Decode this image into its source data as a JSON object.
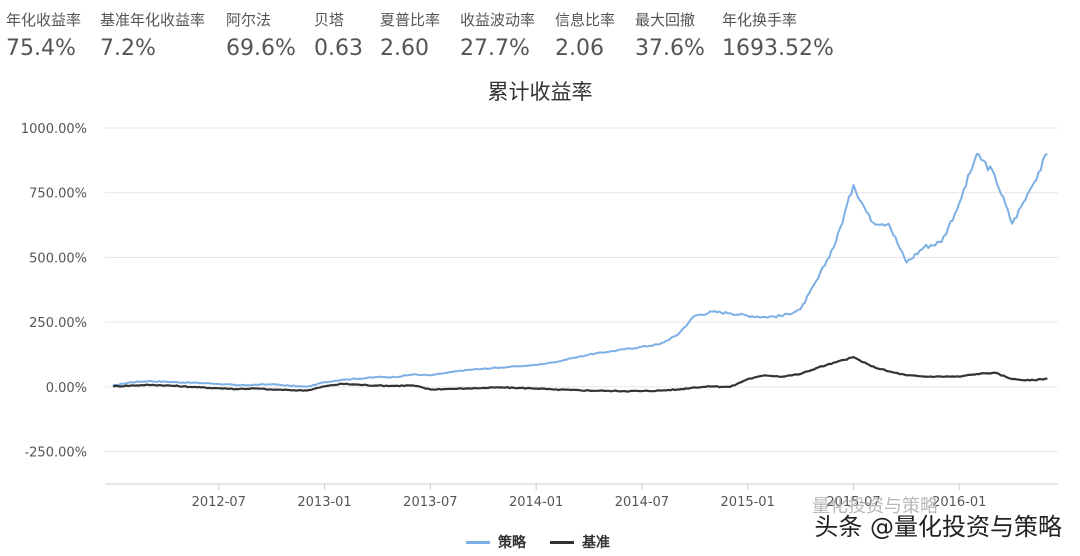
{
  "metrics": [
    {
      "label": "年化收益率",
      "value": "75.4%"
    },
    {
      "label": "基准年化收益率",
      "value": "7.2%"
    },
    {
      "label": "阿尔法",
      "value": "69.6%"
    },
    {
      "label": "贝塔",
      "value": "0.63"
    },
    {
      "label": "夏普比率",
      "value": "2.60"
    },
    {
      "label": "收益波动率",
      "value": "27.7%"
    },
    {
      "label": "信息比率",
      "value": "2.06"
    },
    {
      "label": "最大回撤",
      "value": "37.6%"
    },
    {
      "label": "年化换手率",
      "value": "1693.52%"
    }
  ],
  "watermark": {
    "faint": "量化投资与策略",
    "main": "头条 @量化投资与策略"
  },
  "chart_data": {
    "type": "line",
    "title": "累计收益率",
    "xlabel": "",
    "ylabel": "",
    "x_range": [
      "2012-01",
      "2016-06"
    ],
    "ylim": [
      -375,
      1000
    ],
    "y_ticks": [
      1000,
      750,
      500,
      250,
      0,
      -250
    ],
    "y_tick_labels": [
      "1000.00%",
      "750.00%",
      "500.00%",
      "250.00%",
      "0.00%",
      "-250.00%"
    ],
    "x_ticks": [
      "2012-07",
      "2013-01",
      "2013-07",
      "2014-01",
      "2014-07",
      "2015-01",
      "2015-07",
      "2016-01"
    ],
    "x_tick_labels": [
      "2012-07",
      "2013-01",
      "2013-07",
      "2014-01",
      "2014-07",
      "2015-01",
      "2015-07",
      "2016-01"
    ],
    "grid": true,
    "legend_position": "bottom",
    "series": [
      {
        "name": "策略",
        "color": "#7cb0e4",
        "x": [
          "2012-01",
          "2012-02",
          "2012-03",
          "2012-04",
          "2012-05",
          "2012-06",
          "2012-07",
          "2012-08",
          "2012-09",
          "2012-10",
          "2012-11",
          "2012-12",
          "2013-01",
          "2013-02",
          "2013-03",
          "2013-04",
          "2013-05",
          "2013-06",
          "2013-07",
          "2013-08",
          "2013-09",
          "2013-10",
          "2013-11",
          "2013-12",
          "2014-01",
          "2014-02",
          "2014-03",
          "2014-04",
          "2014-05",
          "2014-06",
          "2014-07",
          "2014-08",
          "2014-09",
          "2014-10",
          "2014-11",
          "2014-12",
          "2015-01",
          "2015-02",
          "2015-03",
          "2015-04",
          "2015-05",
          "2015-06",
          "2015-07",
          "2015-08",
          "2015-09",
          "2015-10",
          "2015-11",
          "2015-12",
          "2016-01",
          "2016-02",
          "2016-03",
          "2016-04",
          "2016-05",
          "2016-06"
        ],
        "values": [
          5,
          18,
          22,
          20,
          17,
          15,
          12,
          6,
          8,
          10,
          5,
          0,
          18,
          28,
          32,
          38,
          38,
          48,
          45,
          55,
          65,
          70,
          75,
          80,
          85,
          95,
          110,
          125,
          135,
          145,
          155,
          165,
          200,
          275,
          290,
          285,
          275,
          270,
          275,
          300,
          420,
          560,
          780,
          640,
          630,
          480,
          540,
          560,
          710,
          900,
          820,
          630,
          760,
          900
        ]
      },
      {
        "name": "基准",
        "color": "#333333",
        "x": [
          "2012-01",
          "2012-02",
          "2012-03",
          "2012-04",
          "2012-05",
          "2012-06",
          "2012-07",
          "2012-08",
          "2012-09",
          "2012-10",
          "2012-11",
          "2012-12",
          "2013-01",
          "2013-02",
          "2013-03",
          "2013-04",
          "2013-05",
          "2013-06",
          "2013-07",
          "2013-08",
          "2013-09",
          "2013-10",
          "2013-11",
          "2013-12",
          "2014-01",
          "2014-02",
          "2014-03",
          "2014-04",
          "2014-05",
          "2014-06",
          "2014-07",
          "2014-08",
          "2014-09",
          "2014-10",
          "2014-11",
          "2014-12",
          "2015-01",
          "2015-02",
          "2015-03",
          "2015-04",
          "2015-05",
          "2015-06",
          "2015-07",
          "2015-08",
          "2015-09",
          "2015-10",
          "2015-11",
          "2015-12",
          "2016-01",
          "2016-02",
          "2016-03",
          "2016-04",
          "2016-05",
          "2016-06"
        ],
        "values": [
          2,
          5,
          8,
          6,
          2,
          -2,
          -5,
          -8,
          -6,
          -10,
          -12,
          -14,
          2,
          12,
          8,
          5,
          4,
          6,
          -10,
          -8,
          -6,
          -4,
          -2,
          -4,
          -6,
          -10,
          -12,
          -14,
          -15,
          -16,
          -16,
          -14,
          -10,
          -2,
          2,
          0,
          30,
          45,
          40,
          50,
          75,
          95,
          115,
          80,
          60,
          45,
          40,
          40,
          40,
          50,
          55,
          30,
          25,
          32
        ]
      }
    ]
  }
}
